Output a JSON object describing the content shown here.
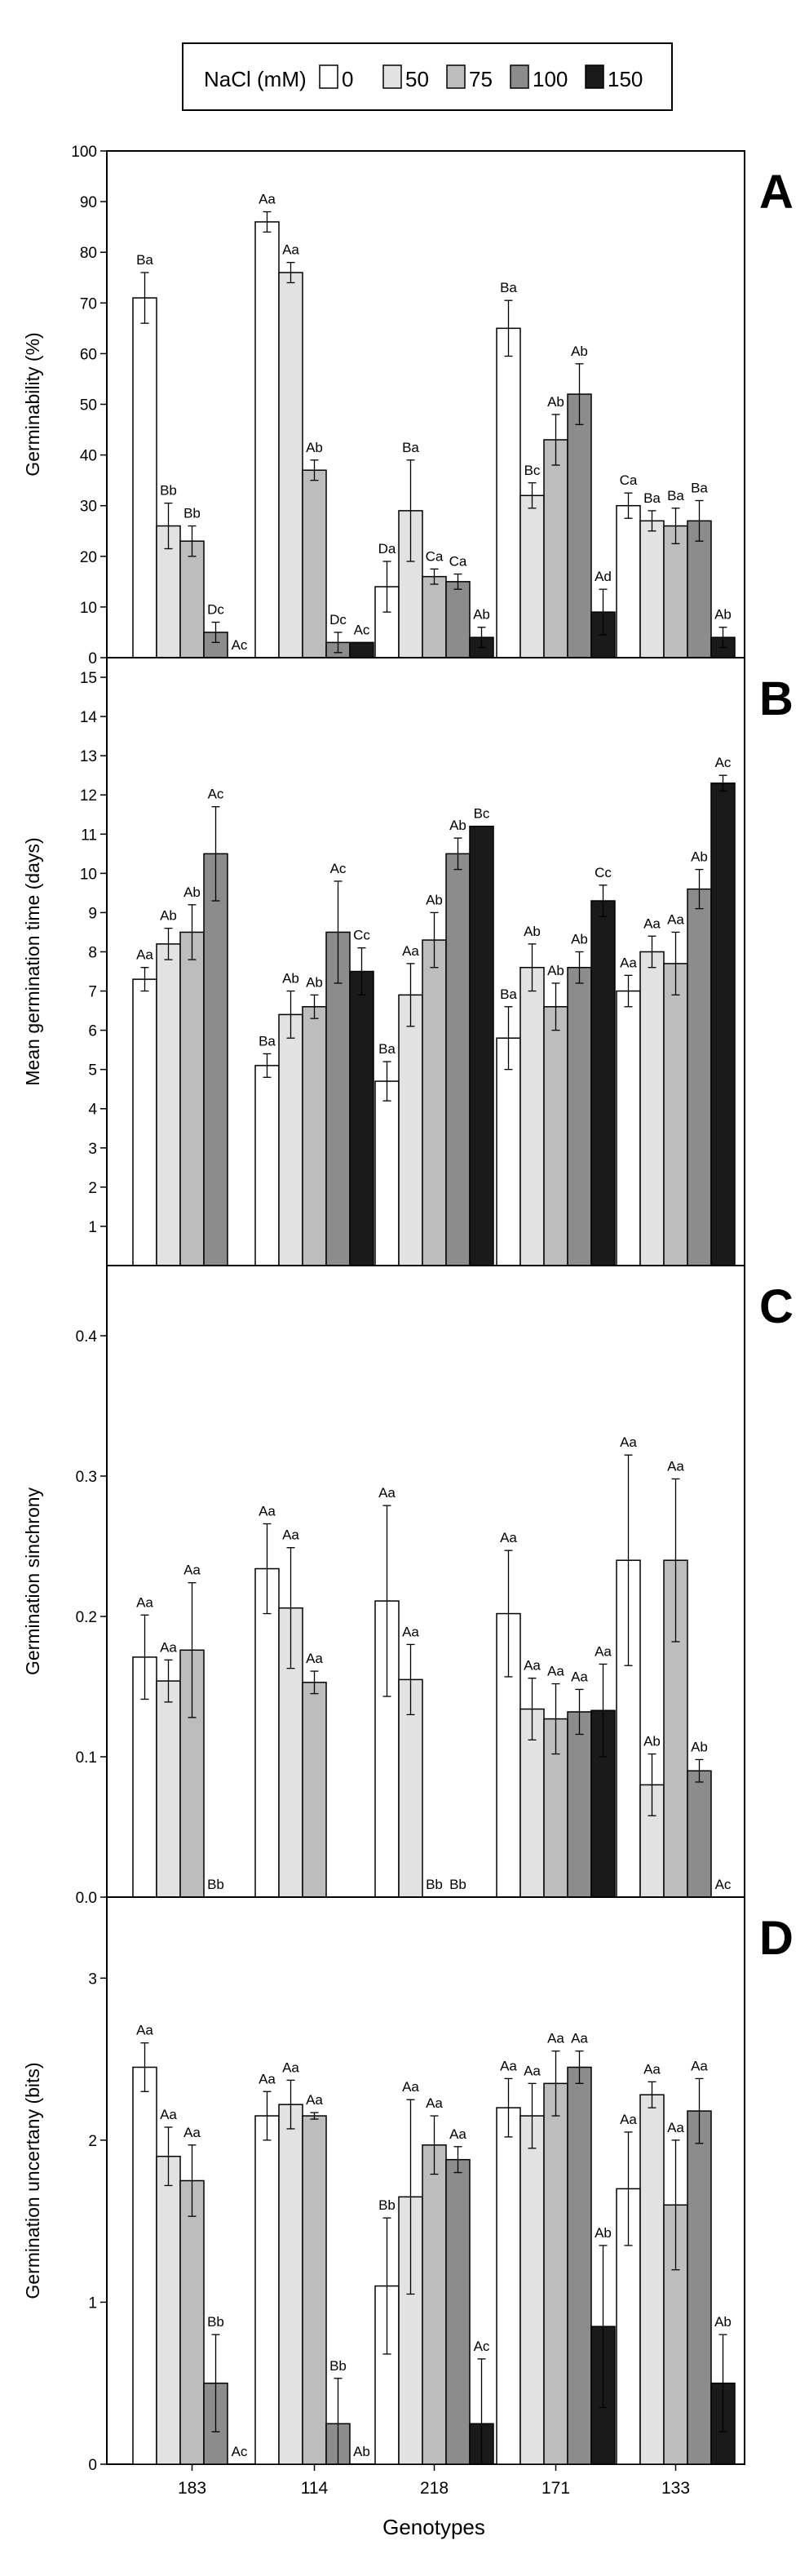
{
  "legend": {
    "title": "NaCl (mM)",
    "levels": [
      "0",
      "50",
      "75",
      "100",
      "150"
    ],
    "colors": [
      "#ffffff",
      "#e2e2e2",
      "#bdbdbd",
      "#8c8c8c",
      "#1a1a1a"
    ]
  },
  "x_axis_title": "Genotypes",
  "chart_data": [
    {
      "type": "bar",
      "panel_letter": "A",
      "ylabel": "Germinability (%)",
      "ylim": [
        0,
        100
      ],
      "yticks": [
        "0",
        "10",
        "20",
        "30",
        "40",
        "50",
        "60",
        "70",
        "80",
        "90",
        "100"
      ],
      "categories": [
        "183",
        "114",
        "218",
        "171",
        "133"
      ],
      "series": [
        {
          "name": "0",
          "values": [
            71,
            86,
            14,
            65,
            30
          ],
          "errors": [
            5,
            2,
            5,
            5.5,
            2.5
          ],
          "labels": [
            "Ba",
            "Aa",
            "Da",
            "Ba",
            "Ca"
          ]
        },
        {
          "name": "50",
          "values": [
            26,
            76,
            29,
            32,
            27
          ],
          "errors": [
            4.5,
            2,
            10,
            2.5,
            2
          ],
          "labels": [
            "Bb",
            "Aa",
            "Ba",
            "Bc",
            "Ba"
          ]
        },
        {
          "name": "75",
          "values": [
            23,
            37,
            16,
            43,
            26
          ],
          "errors": [
            3,
            2,
            1.5,
            5,
            3.5
          ],
          "labels": [
            "Bb",
            "Ab",
            "Ca",
            "Ab",
            "Ba"
          ]
        },
        {
          "name": "100",
          "values": [
            5,
            3,
            15,
            52,
            27
          ],
          "errors": [
            2,
            2,
            1.5,
            6,
            4
          ],
          "labels": [
            "Dc",
            "Dc",
            "Ca",
            "Ab",
            "Ba"
          ]
        },
        {
          "name": "150",
          "values": [
            0,
            3,
            4,
            9,
            4
          ],
          "errors": [
            0,
            0,
            2,
            4.5,
            2
          ],
          "labels": [
            "Ac",
            "Ac",
            "Ab",
            "Ad",
            "Ab"
          ]
        }
      ]
    },
    {
      "type": "bar",
      "panel_letter": "B",
      "ylabel": "Mean germination time (days)",
      "ylim": [
        0,
        15.5
      ],
      "yticks": [
        "1",
        "2",
        "3",
        "4",
        "5",
        "6",
        "7",
        "8",
        "9",
        "10",
        "11",
        "12",
        "13",
        "14",
        "15"
      ],
      "categories": [
        "183",
        "114",
        "218",
        "171",
        "133"
      ],
      "series": [
        {
          "name": "0",
          "values": [
            7.3,
            5.1,
            4.7,
            5.8,
            7.0
          ],
          "errors": [
            0.3,
            0.3,
            0.5,
            0.8,
            0.4
          ],
          "labels": [
            "Aa",
            "Ba",
            "Ba",
            "Ba",
            "Aa"
          ]
        },
        {
          "name": "50",
          "values": [
            8.2,
            6.4,
            6.9,
            7.6,
            8.0
          ],
          "errors": [
            0.4,
            0.6,
            0.8,
            0.6,
            0.4
          ],
          "labels": [
            "Ab",
            "Ab",
            "Aa",
            "Ab",
            "Aa"
          ]
        },
        {
          "name": "75",
          "values": [
            8.5,
            6.6,
            8.3,
            6.6,
            7.7
          ],
          "errors": [
            0.7,
            0.3,
            0.7,
            0.6,
            0.8
          ],
          "labels": [
            "Ab",
            "Ab",
            "Ab",
            "Ab",
            "Aa"
          ]
        },
        {
          "name": "100",
          "values": [
            10.5,
            8.5,
            10.5,
            7.6,
            9.6
          ],
          "errors": [
            1.2,
            1.3,
            0.4,
            0.4,
            0.5
          ],
          "labels": [
            "Ac",
            "Ac",
            "Ab",
            "Ab",
            "Ab"
          ]
        },
        {
          "name": "150",
          "values": [
            0,
            7.5,
            11.2,
            9.3,
            12.3
          ],
          "errors": [
            0,
            0.6,
            0,
            0.4,
            0.2
          ],
          "labels": [
            "",
            "Cc",
            "Bc",
            "Cc",
            "Ac"
          ]
        }
      ]
    },
    {
      "type": "bar",
      "panel_letter": "C",
      "ylabel": "Germination sinchrony",
      "ylim": [
        0,
        0.45
      ],
      "yticks": [
        "0.0",
        "0.1",
        "0.2",
        "0.3",
        "0.4"
      ],
      "categories": [
        "183",
        "114",
        "218",
        "171",
        "133"
      ],
      "series": [
        {
          "name": "0",
          "values": [
            0.171,
            0.234,
            0.211,
            0.202,
            0.24
          ],
          "errors": [
            0.03,
            0.032,
            0.068,
            0.045,
            0.075
          ],
          "labels": [
            "Aa",
            "Aa",
            "Aa",
            "Aa",
            "Aa"
          ]
        },
        {
          "name": "50",
          "values": [
            0.154,
            0.206,
            0.155,
            0.134,
            0.08
          ],
          "errors": [
            0.015,
            0.043,
            0.025,
            0.022,
            0.022
          ],
          "labels": [
            "Aa",
            "Aa",
            "Aa",
            "Aa",
            "Ab"
          ]
        },
        {
          "name": "75",
          "values": [
            0.176,
            0.153,
            0,
            0.127,
            0.24
          ],
          "errors": [
            0.048,
            0.008,
            0,
            0.025,
            0.058
          ],
          "labels": [
            "Aa",
            "Aa",
            "Bb",
            "Aa",
            "Aa"
          ]
        },
        {
          "name": "100",
          "values": [
            0,
            0,
            0,
            0.132,
            0.09
          ],
          "errors": [
            0,
            0,
            0,
            0.016,
            0.008
          ],
          "labels": [
            "Bb",
            "",
            "Bb",
            "Aa",
            "Ab"
          ]
        },
        {
          "name": "150",
          "values": [
            0,
            0,
            0,
            0.133,
            0
          ],
          "errors": [
            0,
            0,
            0,
            0.033,
            0
          ],
          "labels": [
            "",
            "",
            "",
            "Aa",
            "Ac"
          ]
        }
      ]
    },
    {
      "type": "bar",
      "panel_letter": "D",
      "ylabel": "Germination uncertany (bits)",
      "ylim": [
        0,
        3.5
      ],
      "yticks": [
        "0",
        "1",
        "2",
        "3"
      ],
      "xticks": true,
      "categories": [
        "183",
        "114",
        "218",
        "171",
        "133"
      ],
      "series": [
        {
          "name": "0",
          "values": [
            2.45,
            2.15,
            1.1,
            2.2,
            1.7
          ],
          "errors": [
            0.15,
            0.15,
            0.42,
            0.18,
            0.35
          ],
          "labels": [
            "Aa",
            "Aa",
            "Bb",
            "Aa",
            "Aa"
          ]
        },
        {
          "name": "50",
          "values": [
            1.9,
            2.22,
            1.65,
            2.15,
            2.28
          ],
          "errors": [
            0.18,
            0.15,
            0.6,
            0.2,
            0.08
          ],
          "labels": [
            "Aa",
            "Aa",
            "Aa",
            "Aa",
            "Aa"
          ]
        },
        {
          "name": "75",
          "values": [
            1.75,
            2.15,
            1.97,
            2.35,
            1.6
          ],
          "errors": [
            0.22,
            0.02,
            0.18,
            0.2,
            0.4
          ],
          "labels": [
            "Aa",
            "Aa",
            "Aa",
            "Aa",
            "Aa"
          ]
        },
        {
          "name": "100",
          "values": [
            0.5,
            0.25,
            1.88,
            2.45,
            2.18
          ],
          "errors": [
            0.3,
            0.28,
            0.08,
            0.1,
            0.2
          ],
          "labels": [
            "Bb",
            "Bb",
            "Aa",
            "Aa",
            "Aa"
          ]
        },
        {
          "name": "150",
          "values": [
            0,
            0,
            0.25,
            0.85,
            0.5
          ],
          "errors": [
            0,
            0,
            0.4,
            0.5,
            0.3
          ],
          "labels": [
            "Ac",
            "Ab",
            "Ac",
            "Ab",
            "Ab"
          ]
        }
      ]
    }
  ]
}
